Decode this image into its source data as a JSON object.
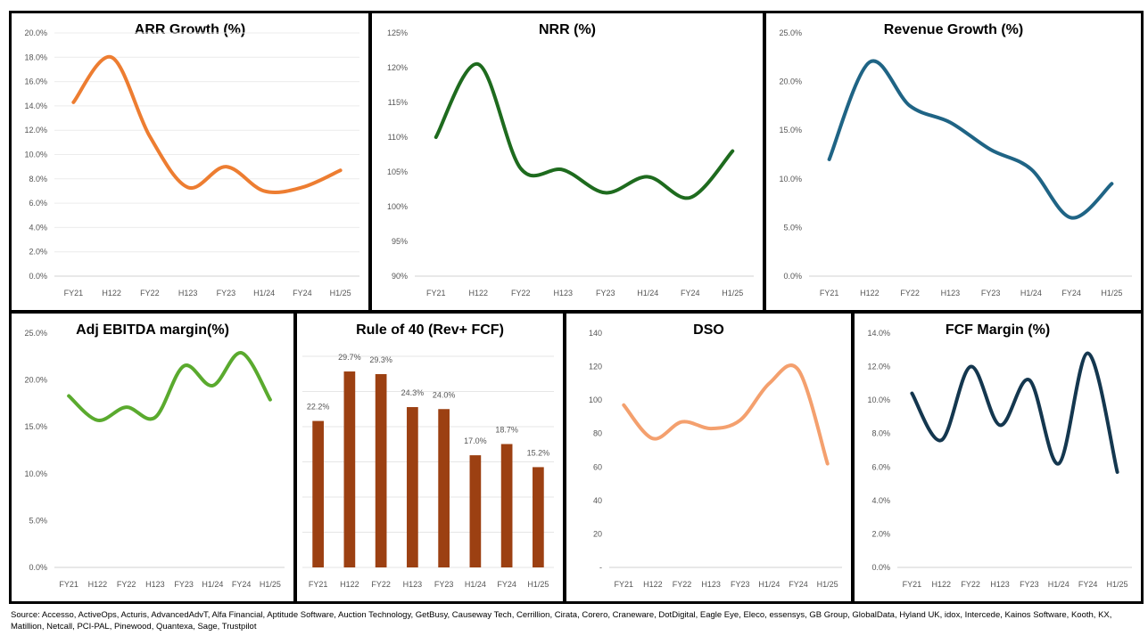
{
  "categories": [
    "FY21",
    "H122",
    "FY22",
    "H123",
    "FY23",
    "H1/24",
    "FY24",
    "H1/25"
  ],
  "source": "Source: Accesso, ActiveOps, Acturis, AdvancedAdvT, Alfa Financial, Aptitude Software, Auction Technology, GetBusy, Causeway Tech, Cerrillion, Cirata, Corero, Craneware, DotDigital, Eagle Eye, Eleco, essensys, GB Group, GlobalData, Hyland UK, idox, Intercede, Kainos Software, Kooth, KX, Matillion, Netcall, PCI-PAL, Pinewood, Quantexa, Sage, Trustpilot",
  "chart_data": [
    {
      "type": "line",
      "title": "ARR Growth (%)",
      "color": "#ED7D31",
      "ylim": [
        0,
        20
      ],
      "ystep": 2,
      "yfmt": "pct1",
      "values": [
        14.3,
        18.0,
        11.5,
        7.3,
        9.0,
        7.0,
        7.3,
        8.7
      ],
      "grid": true
    },
    {
      "type": "line",
      "title": "NRR (%)",
      "color": "#1E6B1E",
      "ylim": [
        90,
        125
      ],
      "ystep": 5,
      "yfmt": "pct0",
      "values": [
        110,
        120.5,
        105.5,
        105.3,
        102,
        104.3,
        101.3,
        108
      ],
      "grid": false
    },
    {
      "type": "line",
      "title": "Revenue Growth (%)",
      "color": "#1F6485",
      "ylim": [
        0,
        25
      ],
      "ystep": 5,
      "yfmt": "pct1",
      "values": [
        12,
        22,
        17.5,
        15.8,
        13,
        11,
        6,
        9.5
      ],
      "grid": false
    },
    {
      "type": "line",
      "title": "Adj EBITDA margin(%)",
      "color": "#5AAA2E",
      "ylim": [
        0,
        25
      ],
      "ystep": 5,
      "yfmt": "pct1",
      "values": [
        18.3,
        15.7,
        17.1,
        16.0,
        21.5,
        19.4,
        22.9,
        17.9
      ],
      "grid": false
    },
    {
      "type": "bar",
      "title": "Rule of 40  (Rev+ FCF)",
      "color": "#9C4012",
      "ylim": [
        0,
        32
      ],
      "values": [
        22.2,
        29.7,
        29.3,
        24.3,
        24.0,
        17.0,
        18.7,
        15.2
      ],
      "labels": [
        "22.2%",
        "29.7%",
        "29.3%",
        "24.3%",
        "24.0%",
        "17.0%",
        "18.7%",
        "15.2%"
      ],
      "grid": true
    },
    {
      "type": "line",
      "title": "DSO",
      "color": "#F4A06E",
      "ylim": [
        0,
        140
      ],
      "ystep": 20,
      "yfmt": "dso",
      "values": [
        97,
        77,
        87,
        83,
        88,
        110,
        118,
        62
      ],
      "grid": false
    },
    {
      "type": "line",
      "title": "FCF Margin  (%)",
      "color": "#14374F",
      "ylim": [
        0,
        14
      ],
      "ystep": 2,
      "yfmt": "pct1",
      "values": [
        10.4,
        7.6,
        12.0,
        8.5,
        11.2,
        6.2,
        12.8,
        5.7
      ],
      "grid": false
    }
  ]
}
